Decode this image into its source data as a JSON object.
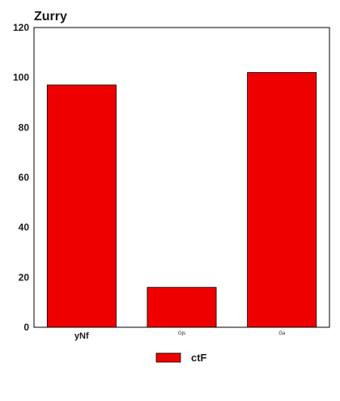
{
  "chart_data": {
    "type": "bar",
    "title": "Zurry",
    "xlabel": "",
    "ylabel": "",
    "categories": [
      "yNf",
      "Gjs",
      "Ga"
    ],
    "series": [
      {
        "name": "ctF",
        "values": [
          97,
          16,
          102
        ]
      }
    ],
    "ylim": [
      0,
      120
    ],
    "yticks": [
      0,
      20,
      40,
      60,
      80,
      100,
      120
    ],
    "grid": false,
    "legend": "bottom-center",
    "colors": {
      "bar": "#ee0000",
      "axis": "#000000",
      "text": "#1a1a1a"
    }
  }
}
